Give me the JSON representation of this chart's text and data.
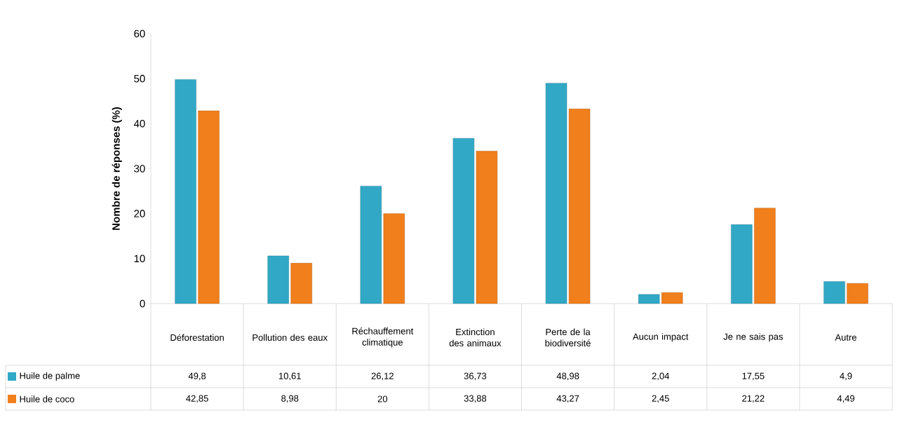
{
  "chart_data": {
    "type": "bar",
    "ylabel": "**Nombre de réponses (%)**",
    "categories": [
      "Déforestation",
      "Pollution des eaux",
      "Réchauffement climatique",
      "Extinction des animaux",
      "Perte de la biodiversité",
      "Aucun impact",
      "Je ne sais pas",
      "Autre"
    ],
    "series": [
      {
        "name": "Huile de palme",
        "color": "#31a9c6",
        "values": [
          49.8,
          10.61,
          26.12,
          36.73,
          48.98,
          2.04,
          17.55,
          4.9
        ],
        "value_labels": [
          "49,8",
          "10,61",
          "26,12",
          "36,73",
          "48,98",
          "2,04",
          "17,55",
          "4,9"
        ]
      },
      {
        "name": "Huile de coco",
        "color": "#f07f1c",
        "values": [
          42.85,
          8.98,
          20,
          33.88,
          43.27,
          2.45,
          21.22,
          4.49
        ],
        "value_labels": [
          "42,85",
          "8,98",
          "20",
          "33,88",
          "43,27",
          "2,45",
          "21,22",
          "4,49"
        ]
      }
    ],
    "ylim": [
      0,
      60
    ],
    "yticks": [
      0,
      10,
      20,
      30,
      40,
      50,
      60
    ],
    "legend": "bottom left"
  }
}
